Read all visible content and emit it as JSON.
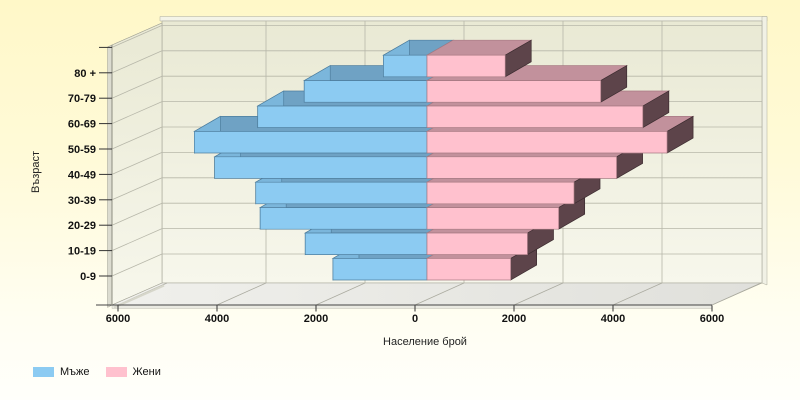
{
  "chart_data": {
    "type": "bar",
    "variant": "3d-horizontal-population-pyramid",
    "title": "",
    "xlabel": "Население брой",
    "ylabel": "Възраст",
    "categories_top_to_bottom": [
      "80 +",
      "70-79",
      "60-69",
      "50-59",
      "40-49",
      "30-39",
      "20-29",
      "10-19",
      "0-9"
    ],
    "x_tick_labels": [
      "6000",
      "4000",
      "2000",
      "0",
      "2000",
      "4000",
      "6000"
    ],
    "x_axis": {
      "max_each_side": 6000,
      "step": 2000
    },
    "grid": true,
    "series": [
      {
        "name": "Мъже",
        "side": "left",
        "values_top_to_bottom": [
          880,
          2480,
          3420,
          4700,
          4290,
          3460,
          3370,
          2460,
          1900
        ],
        "color": "#8CCBF2",
        "top_color": "#6FA2C4",
        "end_color": "#7BB6DB",
        "edge_color": "#4F7F9F"
      },
      {
        "name": "Жени",
        "side": "right",
        "values_top_to_bottom": [
          1580,
          3510,
          4360,
          4850,
          3830,
          2970,
          2660,
          2030,
          1690
        ],
        "color": "#FFC1CE",
        "top_color": "#C2919C",
        "end_color": "#5D444A",
        "edge_color": "#A87A83",
        "end_edge_color": "#3C2C30"
      }
    ],
    "legend": {
      "position": "bottom-left",
      "items": [
        {
          "label": "Мъже",
          "color": "#8CCBF2"
        },
        {
          "label": "Жени",
          "color": "#FFC1CE"
        }
      ]
    },
    "colors": {
      "background_top": "#FFF8C8",
      "background_bottom": "#FFFFFB",
      "wall": "#ECECDA",
      "wall_light": "#F7F7EC",
      "floor": "#E7E7E3",
      "gridline": "#B7B7A9",
      "axis": "#444444",
      "text": "#111111"
    }
  }
}
